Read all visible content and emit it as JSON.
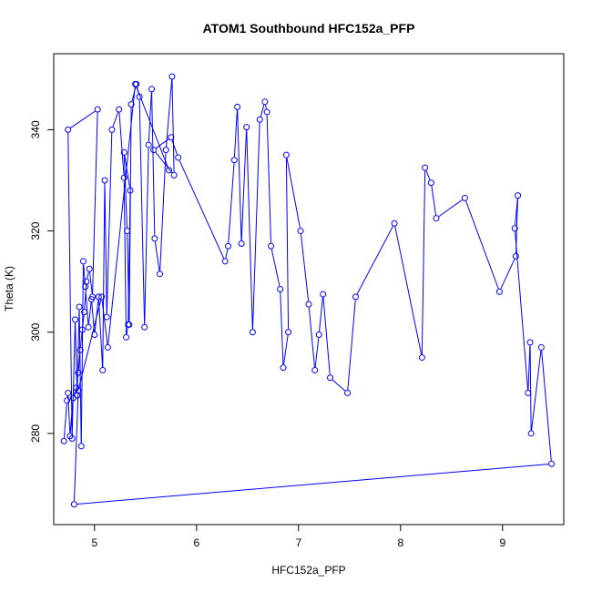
{
  "chart_data": {
    "type": "line",
    "title": "ATOM1 Southbound HFC152a_PFP",
    "xlabel": "HFC152a_PFP",
    "ylabel": "Theta (K)",
    "xlim": [
      4.6,
      9.6
    ],
    "ylim": [
      262,
      355
    ],
    "xticks": [
      5,
      6,
      7,
      8,
      9
    ],
    "yticks": [
      280,
      300,
      320,
      340
    ],
    "grid": false,
    "legend": "none",
    "colors": {
      "series": "#0000ff",
      "axis": "#000000",
      "background": "#ffffff"
    },
    "series": [
      {
        "marker": "open-circle",
        "x": [
          4.7,
          4.73,
          4.74,
          4.76,
          4.79,
          4.82,
          4.84,
          4.86,
          4.88,
          4.9,
          4.92,
          4.95,
          4.98,
          5.03,
          4.74,
          4.78,
          4.81,
          4.83,
          4.85,
          4.87,
          4.89,
          4.91,
          4.94,
          4.97,
          5.0,
          5.04,
          5.08,
          5.1,
          5.12,
          5.17,
          5.24,
          5.29,
          5.31,
          5.33,
          5.35,
          5.29,
          5.32,
          5.34,
          5.36,
          5.41,
          5.44,
          5.49,
          5.53,
          5.56,
          5.59,
          5.64,
          5.7,
          5.76,
          5.78,
          5.58,
          5.75,
          5.82,
          6.28,
          6.31,
          6.37,
          6.4,
          6.44,
          6.49,
          6.55,
          6.62,
          6.67,
          6.69,
          6.73,
          6.82,
          6.85,
          6.9,
          6.88,
          7.02,
          7.1,
          7.16,
          7.2,
          7.24,
          7.31,
          7.48,
          7.56,
          7.94,
          8.21,
          8.24,
          8.3,
          8.35,
          8.63,
          8.97,
          9.13,
          9.15,
          9.12,
          9.25,
          9.27,
          9.28,
          9.38,
          9.48,
          4.8,
          4.84,
          5.07,
          5.13,
          5.4,
          5.73
        ],
        "y": [
          278.5,
          286.5,
          288.0,
          279.5,
          287.0,
          289.0,
          292.0,
          296.5,
          300.5,
          304.0,
          310.0,
          312.5,
          307.0,
          344.0,
          340.0,
          279.0,
          302.5,
          287.5,
          305.0,
          277.5,
          314.0,
          309.0,
          301.0,
          306.5,
          299.5,
          307.0,
          292.5,
          330.0,
          303.0,
          340.0,
          344.0,
          330.5,
          299.0,
          301.5,
          328.0,
          335.5,
          320.0,
          301.5,
          345.0,
          349.0,
          346.5,
          301.0,
          337.0,
          348.0,
          318.5,
          311.5,
          336.0,
          350.5,
          331.0,
          336.0,
          338.5,
          334.5,
          314.0,
          317.0,
          334.0,
          344.5,
          317.5,
          340.5,
          300.0,
          342.0,
          345.5,
          343.5,
          317.0,
          308.5,
          293.0,
          300.0,
          335.0,
          320.0,
          305.5,
          292.5,
          299.5,
          307.5,
          291.0,
          288.0,
          307.0,
          321.5,
          295.0,
          332.5,
          329.5,
          322.5,
          326.5,
          308.0,
          315.0,
          327.0,
          320.5,
          288.0,
          298.0,
          280.0,
          297.0,
          274.0,
          266.0,
          288.5,
          307.0,
          297.0,
          349.0,
          332.0
        ]
      }
    ]
  }
}
